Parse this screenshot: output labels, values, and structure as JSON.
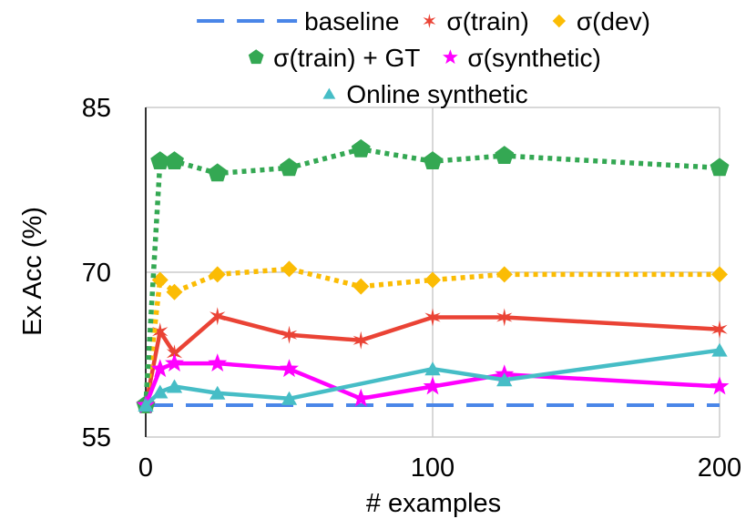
{
  "chart_data": {
    "type": "line",
    "title": "",
    "xlabel": "# examples",
    "ylabel": "Ex Acc (%)",
    "xlim": [
      0,
      200
    ],
    "ylim": [
      55,
      85
    ],
    "xticks": [
      0,
      100,
      200
    ],
    "yticks": [
      55,
      70,
      85
    ],
    "xtick_labels": [
      "0",
      "100",
      "200"
    ],
    "ytick_labels": [
      "55",
      "70",
      "85"
    ],
    "grid": true,
    "legend_position": "top",
    "series": [
      {
        "name": "baseline",
        "color": "#4a86e8",
        "line_style": "dashed",
        "marker": "none",
        "x": [
          0,
          200
        ],
        "y": [
          57.9,
          57.9
        ]
      },
      {
        "name": "σ(train)",
        "color": "#ea4335",
        "line_style": "solid",
        "marker": "x-star",
        "x": [
          0,
          5,
          10,
          25,
          50,
          75,
          100,
          125,
          200
        ],
        "y": [
          57.9,
          64.6,
          62.6,
          66.0,
          64.3,
          63.8,
          65.9,
          65.9,
          64.8
        ]
      },
      {
        "name": "σ(dev)",
        "color": "#fbbc04",
        "line_style": "dotted",
        "marker": "diamond",
        "x": [
          0,
          5,
          10,
          25,
          50,
          75,
          100,
          125,
          200
        ],
        "y": [
          57.9,
          69.3,
          68.2,
          69.8,
          70.3,
          68.7,
          69.3,
          69.8,
          69.8
        ]
      },
      {
        "name": "σ(train) + GT",
        "color": "#34a853",
        "line_style": "dotted",
        "marker": "pentagon",
        "x": [
          0,
          5,
          10,
          25,
          50,
          75,
          100,
          125,
          200
        ],
        "y": [
          57.9,
          80.1,
          80.1,
          79.0,
          79.5,
          81.2,
          80.1,
          80.6,
          79.5
        ]
      },
      {
        "name": "σ(synthetic)",
        "color": "#ff00ff",
        "line_style": "solid",
        "marker": "star",
        "x": [
          0,
          5,
          10,
          25,
          50,
          75,
          100,
          125,
          200
        ],
        "y": [
          57.9,
          61.2,
          61.7,
          61.7,
          61.2,
          58.5,
          59.6,
          60.7,
          59.6
        ]
      },
      {
        "name": "Online synthetic",
        "color": "#46bdc6",
        "line_style": "solid",
        "marker": "triangle",
        "x": [
          0,
          5,
          10,
          25,
          50,
          100,
          125,
          200
        ],
        "y": [
          57.9,
          59.1,
          59.6,
          59.0,
          58.5,
          61.2,
          60.2,
          62.9
        ]
      }
    ]
  }
}
